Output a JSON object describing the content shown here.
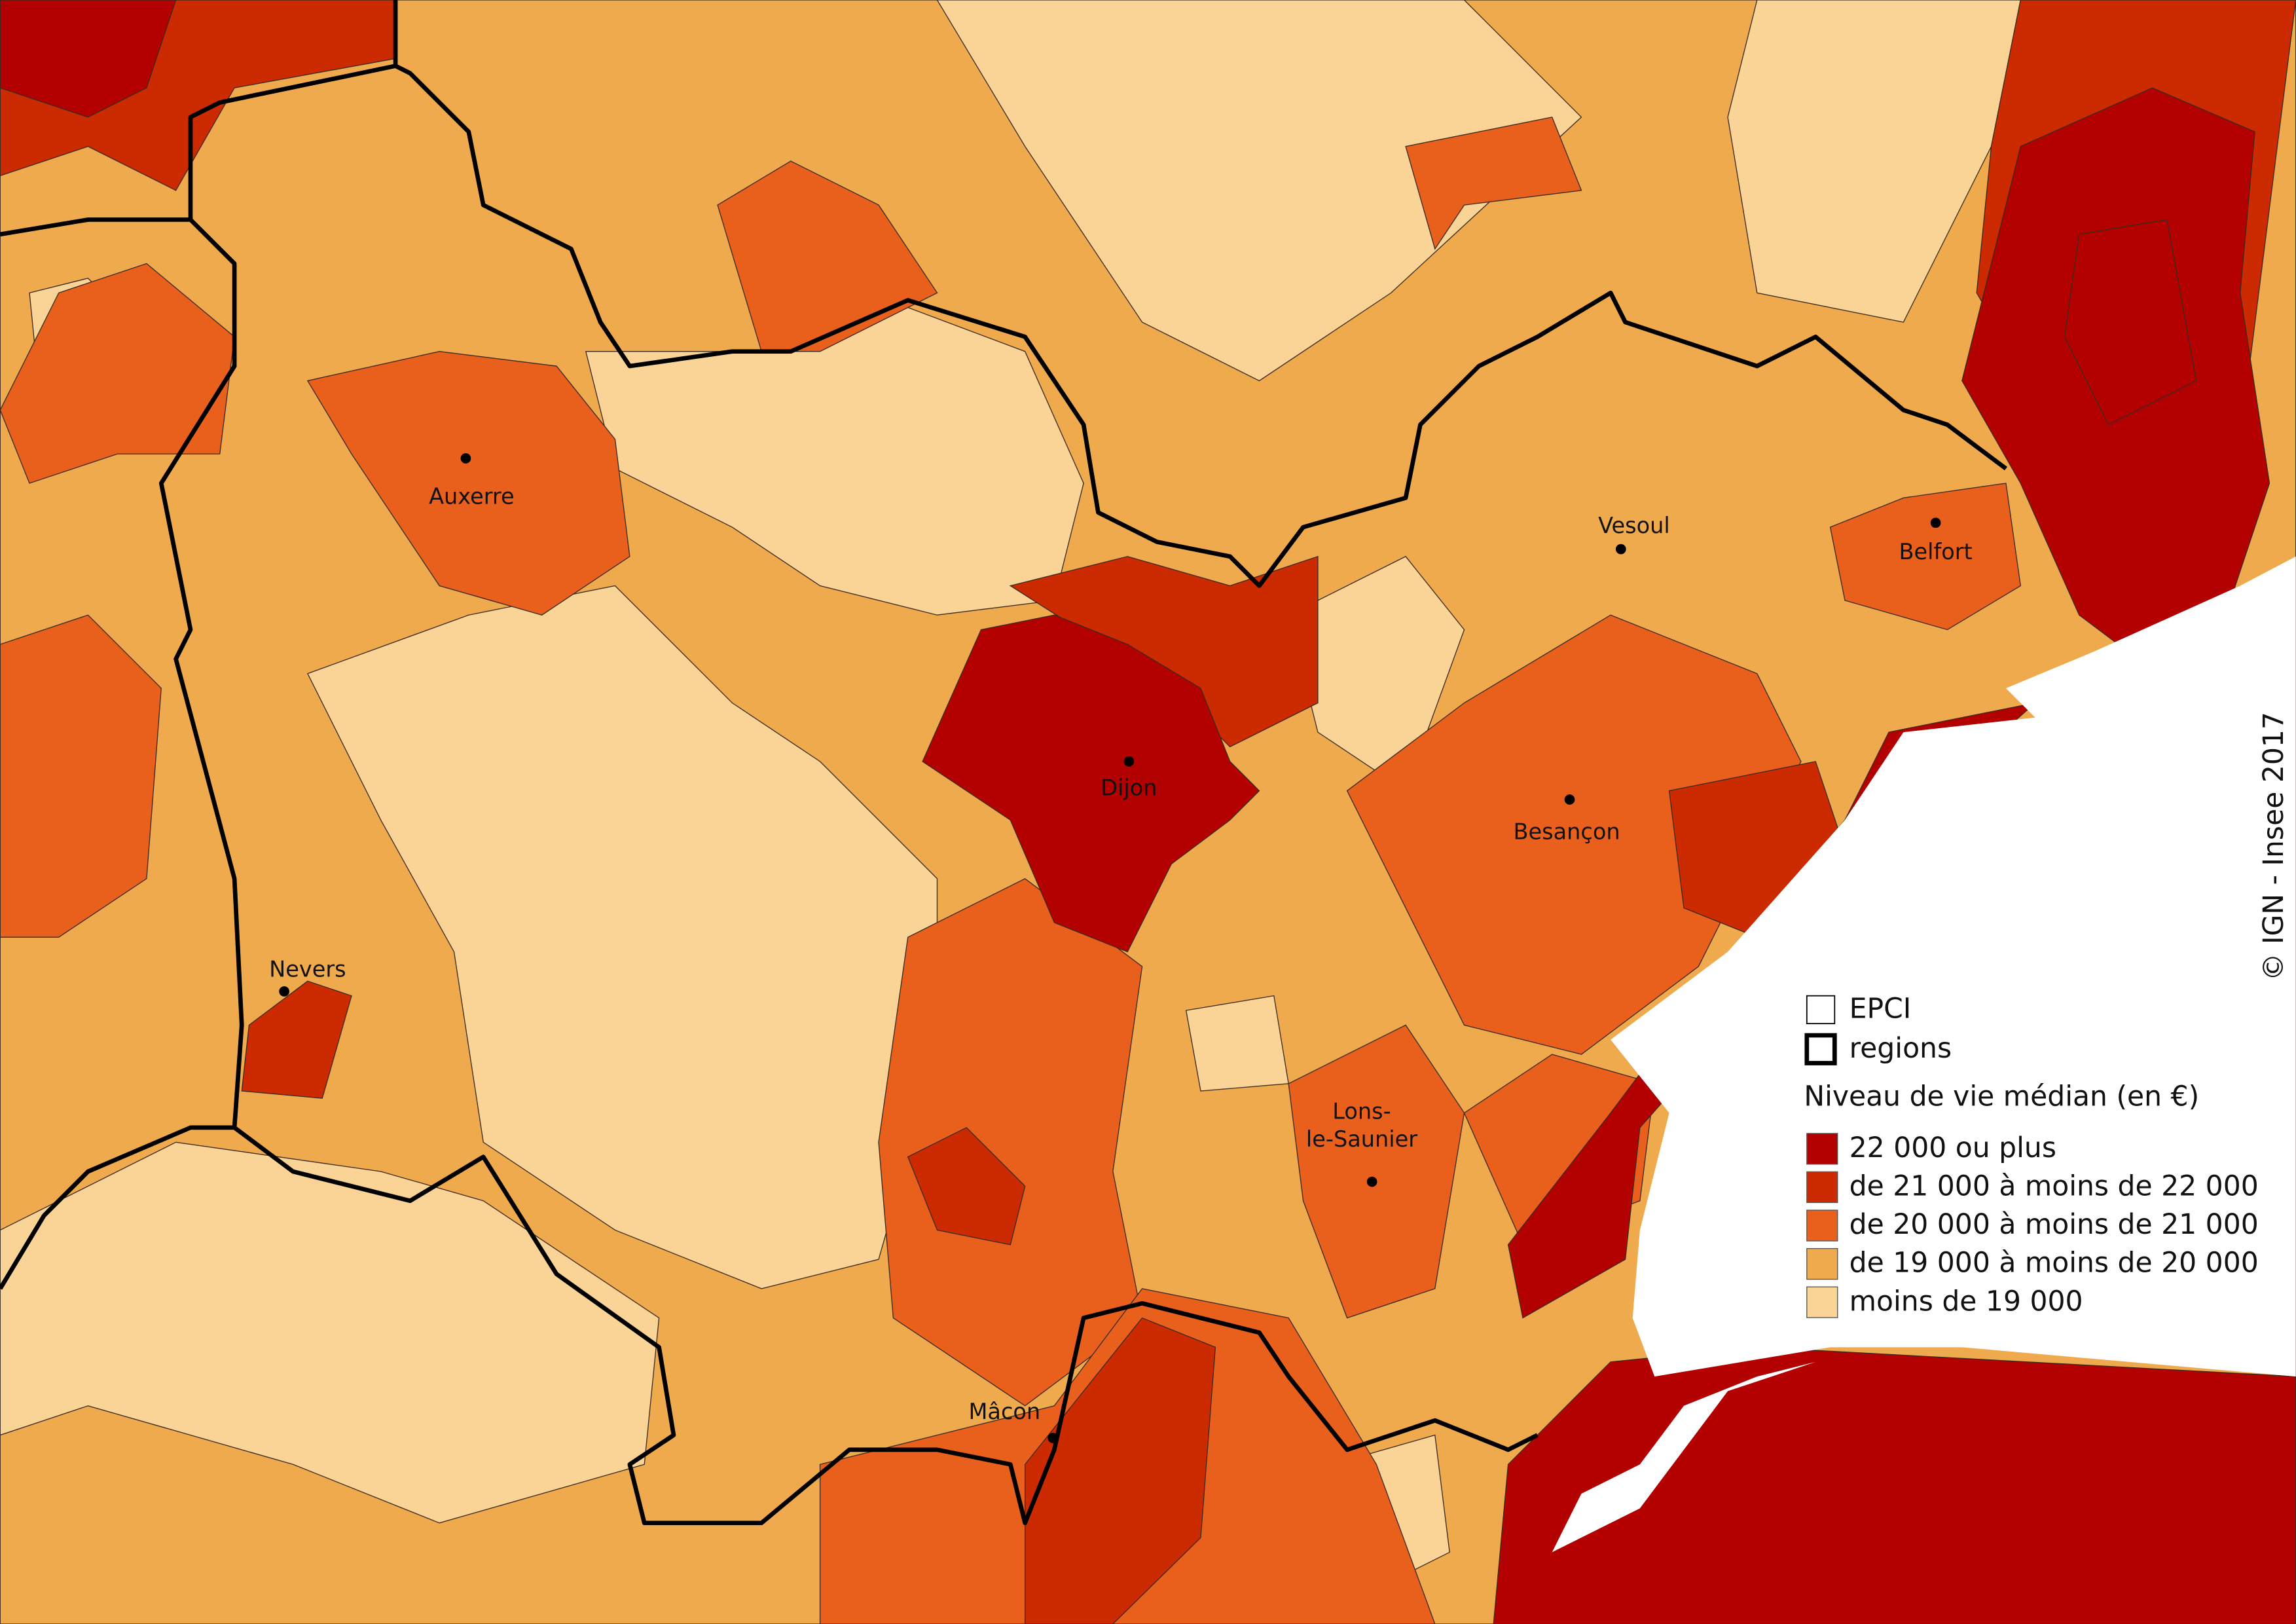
{
  "cities": [
    {
      "lines": [
        "Auxerre"
      ]
    },
    {
      "lines": [
        "Dijon"
      ]
    },
    {
      "lines": [
        "Vesoul"
      ]
    },
    {
      "lines": [
        "Belfort"
      ]
    },
    {
      "lines": [
        "Besançon"
      ]
    },
    {
      "lines": [
        "Nevers"
      ]
    },
    {
      "lines": [
        "Lons-",
        "le-Saunier"
      ]
    },
    {
      "lines": [
        "Mâcon"
      ]
    }
  ],
  "legend": {
    "boundaries": [
      "EPCI",
      "regions"
    ],
    "title": "Niveau de vie médian (en €)",
    "classes": [
      {
        "label": "22 000 ou plus",
        "color": "#b30000"
      },
      {
        "label": "de 21 000 à moins de 22 000",
        "color": "#cc2a00"
      },
      {
        "label": "de 20 000 à moins de 21 000",
        "color": "#e8601c"
      },
      {
        "label": "de 19 000 à moins de 20 000",
        "color": "#f0aa4e"
      },
      {
        "label": "moins de 19 000",
        "color": "#f9d496"
      }
    ]
  },
  "copyright": "© IGN - Insee 2017"
}
